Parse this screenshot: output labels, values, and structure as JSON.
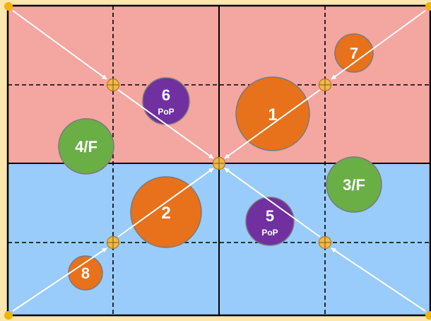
{
  "diagram": {
    "zones": [
      {
        "name": "top-zone",
        "color": "#F4A6A1"
      },
      {
        "name": "bottom-zone",
        "color": "#99CCFA"
      }
    ],
    "circles": [
      {
        "id": "1",
        "label": "1",
        "sub": "",
        "color": "#E8711C"
      },
      {
        "id": "2",
        "label": "2",
        "sub": "",
        "color": "#E8711C"
      },
      {
        "id": "3",
        "label": "3/F",
        "sub": "",
        "color": "#6AAE46"
      },
      {
        "id": "4",
        "label": "4/F",
        "sub": "",
        "color": "#6AAE46"
      },
      {
        "id": "5",
        "label": "5",
        "sub": "PoP",
        "color": "#7030A0"
      },
      {
        "id": "6",
        "label": "6",
        "sub": "PoP",
        "color": "#7030A0"
      },
      {
        "id": "7",
        "label": "7",
        "sub": "",
        "color": "#E8711C"
      },
      {
        "id": "8",
        "label": "8",
        "sub": "",
        "color": "#E8711C"
      }
    ],
    "colors": {
      "grid_line": "#000000",
      "arrow": "#FFFFFF",
      "node_fill": "#F2B84B",
      "corner_dot": "#F2B400",
      "background": "#FCE7AE"
    }
  }
}
